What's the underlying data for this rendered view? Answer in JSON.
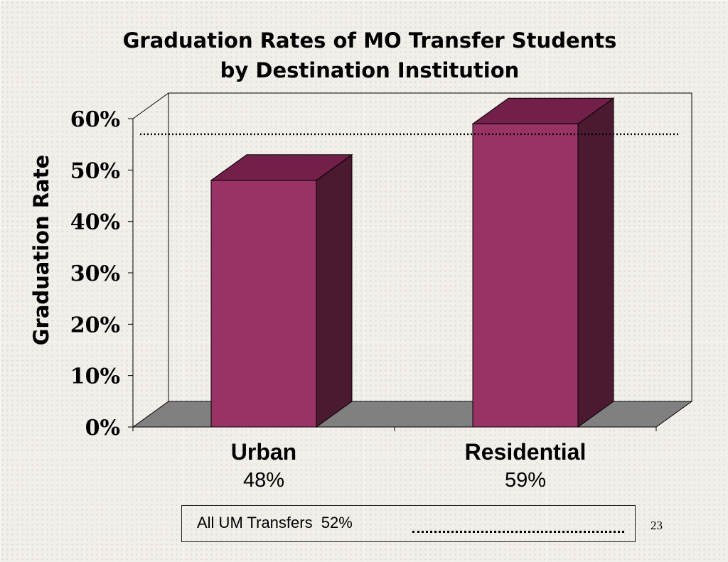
{
  "title_lines": [
    "Graduation Rates of MO Transfer Students",
    "by Destination Institution"
  ],
  "slide_number": "23",
  "legend": {
    "label": "All UM Transfers  52%"
  },
  "chart_data": {
    "type": "bar",
    "title": "Graduation Rates of MO Transfer Students by Destination Institution",
    "ylabel": "Graduation Rate",
    "xlabel": "",
    "categories": [
      "Urban",
      "Residential"
    ],
    "value_labels": [
      "48%",
      "59%"
    ],
    "values": [
      48,
      59
    ],
    "ylim": [
      0,
      60
    ],
    "yticks": [
      0,
      10,
      20,
      30,
      40,
      50,
      60
    ],
    "ytick_labels": [
      "0%",
      "10%",
      "20%",
      "30%",
      "40%",
      "50%",
      "60%"
    ],
    "reference_line": {
      "label": "All UM Transfers",
      "value": 52,
      "style": "dotted"
    },
    "three_d": true,
    "grid": false,
    "colors": {
      "bar_front": "#993366",
      "bar_top": "#72204a",
      "bar_side": "#4b1a30",
      "floor": "#808080"
    }
  }
}
